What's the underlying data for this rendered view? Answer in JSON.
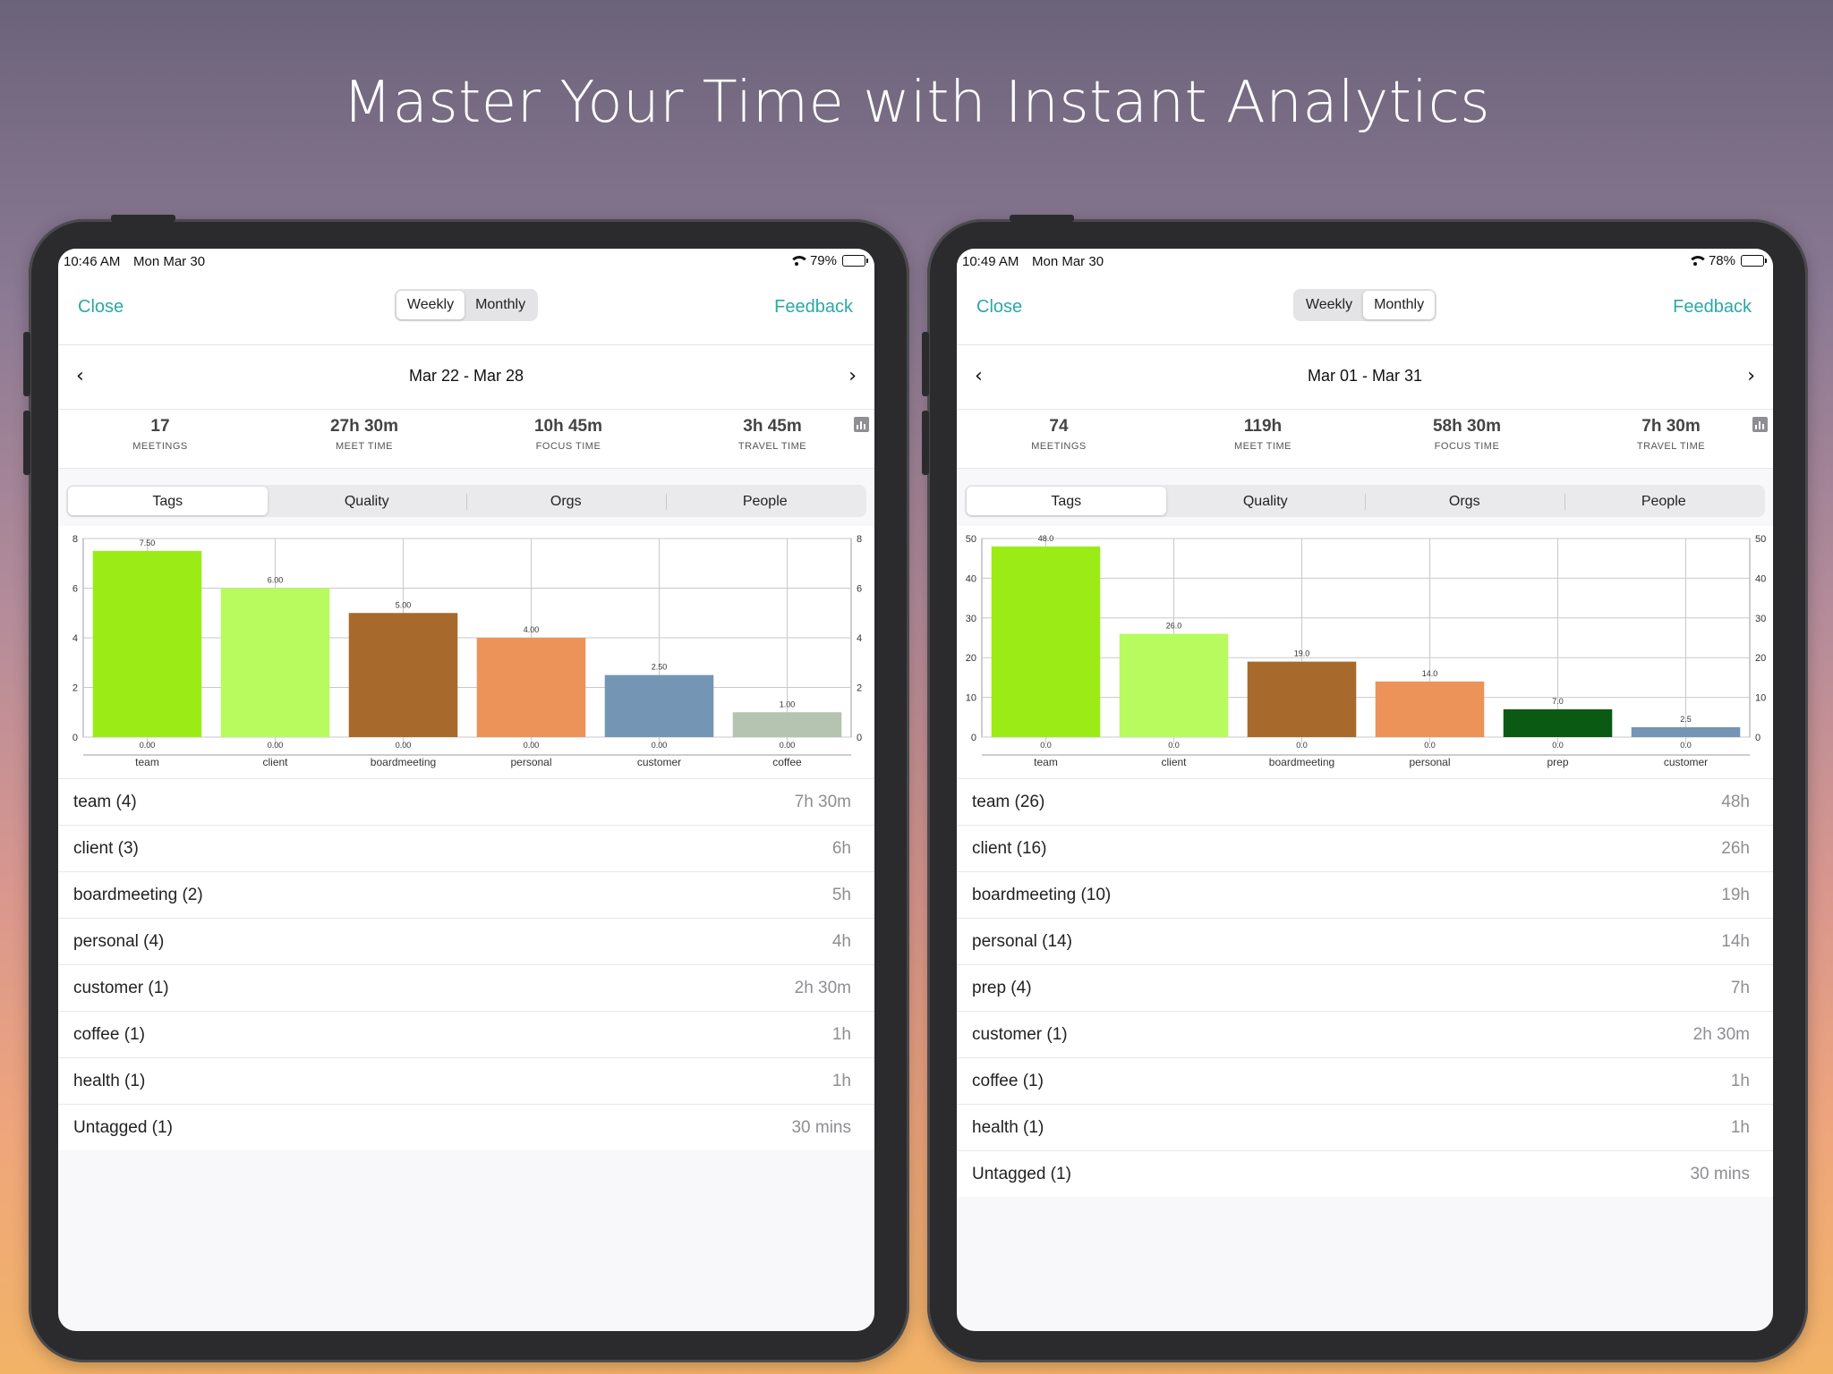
{
  "headline": "Master Your Time with Instant Analytics",
  "screens": [
    {
      "status": {
        "time": "10:46 AM",
        "date": "Mon Mar 30",
        "battery": "79%"
      },
      "nav": {
        "close": "Close",
        "feedback": "Feedback",
        "period_options": [
          "Weekly",
          "Monthly"
        ],
        "active_period": "Weekly"
      },
      "range": "Mar 22 - Mar 28",
      "stats": [
        {
          "value": "17",
          "label": "MEETINGS"
        },
        {
          "value": "27h 30m",
          "label": "MEET TIME"
        },
        {
          "value": "10h 45m",
          "label": "FOCUS TIME"
        },
        {
          "value": "3h 45m",
          "label": "TRAVEL TIME"
        }
      ],
      "tabs": [
        "Tags",
        "Quality",
        "Orgs",
        "People"
      ],
      "active_tab": "Tags",
      "chart_data": {
        "type": "bar",
        "categories": [
          "team",
          "client",
          "boardmeeting",
          "personal",
          "customer",
          "coffee"
        ],
        "values": [
          7.5,
          6.0,
          5.0,
          4.0,
          2.5,
          1.0
        ],
        "value_labels": [
          "7.50",
          "6.00",
          "5.00",
          "4.00",
          "2.50",
          "1.00"
        ],
        "base_labels": [
          "0.00",
          "0.00",
          "0.00",
          "0.00",
          "0.00",
          "0.00"
        ],
        "colors": [
          "#9bec16",
          "#b7fb5e",
          "#a8692c",
          "#ec935a",
          "#7595b4",
          "#b4c4b0"
        ],
        "yticks": [
          "0",
          "2",
          "4",
          "6",
          "8"
        ],
        "ylim": [
          0,
          8
        ],
        "grid": true
      },
      "rows": [
        {
          "name": "team (4)",
          "time": "7h 30m"
        },
        {
          "name": "client (3)",
          "time": "6h"
        },
        {
          "name": "boardmeeting (2)",
          "time": "5h"
        },
        {
          "name": "personal (4)",
          "time": "4h"
        },
        {
          "name": "customer (1)",
          "time": "2h 30m"
        },
        {
          "name": "coffee (1)",
          "time": "1h"
        },
        {
          "name": "health (1)",
          "time": "1h"
        },
        {
          "name": "Untagged (1)",
          "time": "30 mins"
        }
      ]
    },
    {
      "status": {
        "time": "10:49 AM",
        "date": "Mon Mar 30",
        "battery": "78%"
      },
      "nav": {
        "close": "Close",
        "feedback": "Feedback",
        "period_options": [
          "Weekly",
          "Monthly"
        ],
        "active_period": "Monthly"
      },
      "range": "Mar 01 - Mar 31",
      "stats": [
        {
          "value": "74",
          "label": "MEETINGS"
        },
        {
          "value": "119h",
          "label": "MEET TIME"
        },
        {
          "value": "58h 30m",
          "label": "FOCUS TIME"
        },
        {
          "value": "7h 30m",
          "label": "TRAVEL TIME"
        }
      ],
      "tabs": [
        "Tags",
        "Quality",
        "Orgs",
        "People"
      ],
      "active_tab": "Tags",
      "chart_data": {
        "type": "bar",
        "categories": [
          "team",
          "client",
          "boardmeeting",
          "personal",
          "prep",
          "customer"
        ],
        "values": [
          48.0,
          26.0,
          19.0,
          14.0,
          7.0,
          2.5
        ],
        "value_labels": [
          "48.0",
          "26.0",
          "19.0",
          "14.0",
          "7.0",
          "2.5"
        ],
        "base_labels": [
          "0.0",
          "0.0",
          "0.0",
          "0.0",
          "0.0",
          "0.0"
        ],
        "colors": [
          "#9bec16",
          "#b7fb5e",
          "#a8692c",
          "#ec935a",
          "#0a5a13",
          "#7595b4"
        ],
        "yticks": [
          "0",
          "10",
          "20",
          "30",
          "40",
          "50"
        ],
        "ylim": [
          0,
          50
        ],
        "grid": true
      },
      "rows": [
        {
          "name": "team (26)",
          "time": "48h"
        },
        {
          "name": "client (16)",
          "time": "26h"
        },
        {
          "name": "boardmeeting (10)",
          "time": "19h"
        },
        {
          "name": "personal (14)",
          "time": "14h"
        },
        {
          "name": "prep (4)",
          "time": "7h"
        },
        {
          "name": "customer (1)",
          "time": "2h 30m"
        },
        {
          "name": "coffee (1)",
          "time": "1h"
        },
        {
          "name": "health (1)",
          "time": "1h"
        },
        {
          "name": "Untagged (1)",
          "time": "30 mins"
        }
      ]
    }
  ]
}
